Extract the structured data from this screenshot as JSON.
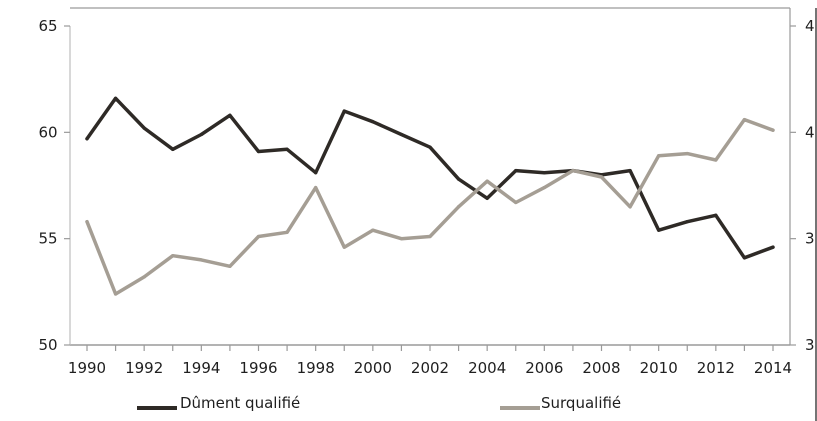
{
  "chart_data": {
    "type": "line",
    "title": "",
    "xlabel": "",
    "ylabel": "",
    "x": [
      1990,
      1991,
      1992,
      1993,
      1994,
      1995,
      1996,
      1997,
      1998,
      1999,
      2000,
      2001,
      2002,
      2003,
      2004,
      2005,
      2006,
      2007,
      2008,
      2009,
      2010,
      2011,
      2012,
      2013,
      2014
    ],
    "xticks": [
      "1990",
      "1992",
      "1994",
      "1996",
      "1998",
      "2000",
      "2002",
      "2004",
      "2006",
      "2008",
      "2010",
      "2012",
      "2014"
    ],
    "xlim": [
      1990,
      2014.5
    ],
    "ylim_left": [
      50,
      65
    ],
    "yticks_left": [
      "50",
      "55",
      "60",
      "65"
    ],
    "yticks_right": [
      "3",
      "3",
      "4",
      "4"
    ],
    "grid": false,
    "legend_position": "bottom",
    "series": [
      {
        "name": "Dûment qualifié",
        "axis": "left",
        "color": "#2e2a26",
        "values": [
          59.7,
          61.6,
          60.2,
          59.2,
          59.9,
          60.8,
          59.1,
          59.2,
          58.1,
          61.0,
          60.5,
          59.9,
          59.3,
          57.8,
          56.9,
          58.2,
          58.1,
          58.2,
          58.0,
          58.2,
          55.4,
          55.8,
          56.1,
          54.1,
          54.6
        ]
      },
      {
        "name": "Surqualifié",
        "axis": "left",
        "color": "#a59e94",
        "values": [
          55.8,
          52.4,
          53.2,
          54.2,
          54.0,
          53.7,
          55.1,
          55.3,
          57.4,
          54.6,
          55.4,
          55.0,
          55.1,
          56.5,
          57.7,
          56.7,
          57.4,
          58.2,
          57.9,
          56.5,
          58.9,
          59.0,
          58.7,
          60.6,
          60.1
        ]
      }
    ]
  }
}
